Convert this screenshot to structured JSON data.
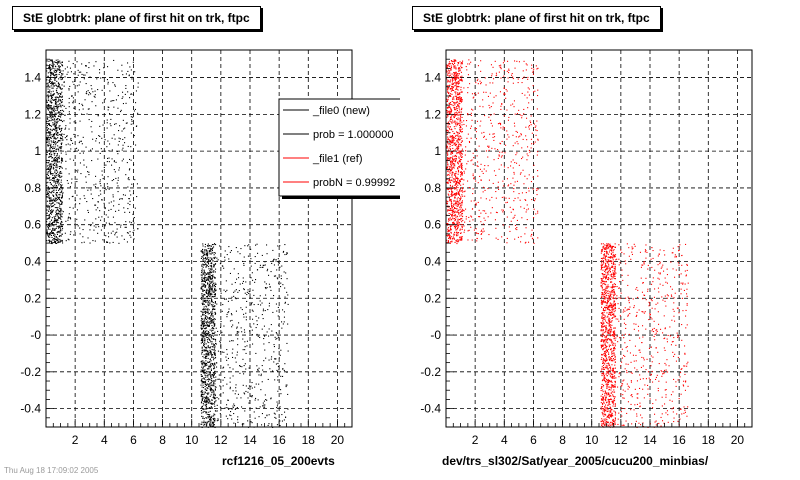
{
  "pads": [
    {
      "title": "StE globtrk: plane of first hit on trk, ftpc",
      "caption": "rcf1216_05_200evts",
      "footnote": "Thu Aug 18 17:09:02 2005",
      "point_color": "#000000",
      "legend": [
        {
          "label": "_file0 (new)",
          "color": "#000000"
        },
        {
          "label": "prob = 1.000000",
          "color": "#000000"
        },
        {
          "label": "_file1 (ref)",
          "color": "#ff0000"
        },
        {
          "label": "probN = 0.99992",
          "color": "#ff0000"
        }
      ]
    },
    {
      "title": "StE globtrk: plane of first hit on trk, ftpc",
      "caption": "dev/trs_sl302/Sat/year_2005/cucu200_minbias/",
      "footnote": "",
      "point_color": "#ff0000",
      "legend": []
    }
  ],
  "chart_data": {
    "type": "scatter",
    "xlim": [
      0,
      21
    ],
    "ylim": [
      -0.5,
      1.55
    ],
    "x_ticks": [
      2,
      4,
      6,
      8,
      10,
      12,
      14,
      16,
      18,
      20
    ],
    "y_ticks": [
      -0.4,
      -0.2,
      0,
      0.2,
      0.4,
      0.6,
      0.8,
      1,
      1.2,
      1.4
    ],
    "y_tick_labels": [
      "-0.4",
      "-0.2",
      "-0",
      "0.2",
      "0.4",
      "0.6",
      "0.8",
      "1",
      "1.2",
      "1.4"
    ],
    "grid": true,
    "clusters": [
      {
        "x_range": [
          0,
          1.1
        ],
        "y_range": [
          0.5,
          1.5
        ],
        "density": "high"
      },
      {
        "x_range": [
          1.1,
          6.3
        ],
        "y_range": [
          0.5,
          1.5
        ],
        "density": "low"
      },
      {
        "x_range": [
          10.6,
          11.6
        ],
        "y_range": [
          -0.5,
          0.5
        ],
        "density": "high"
      },
      {
        "x_range": [
          11.6,
          16.6
        ],
        "y_range": [
          -0.5,
          0.5
        ],
        "density": "low"
      }
    ]
  }
}
